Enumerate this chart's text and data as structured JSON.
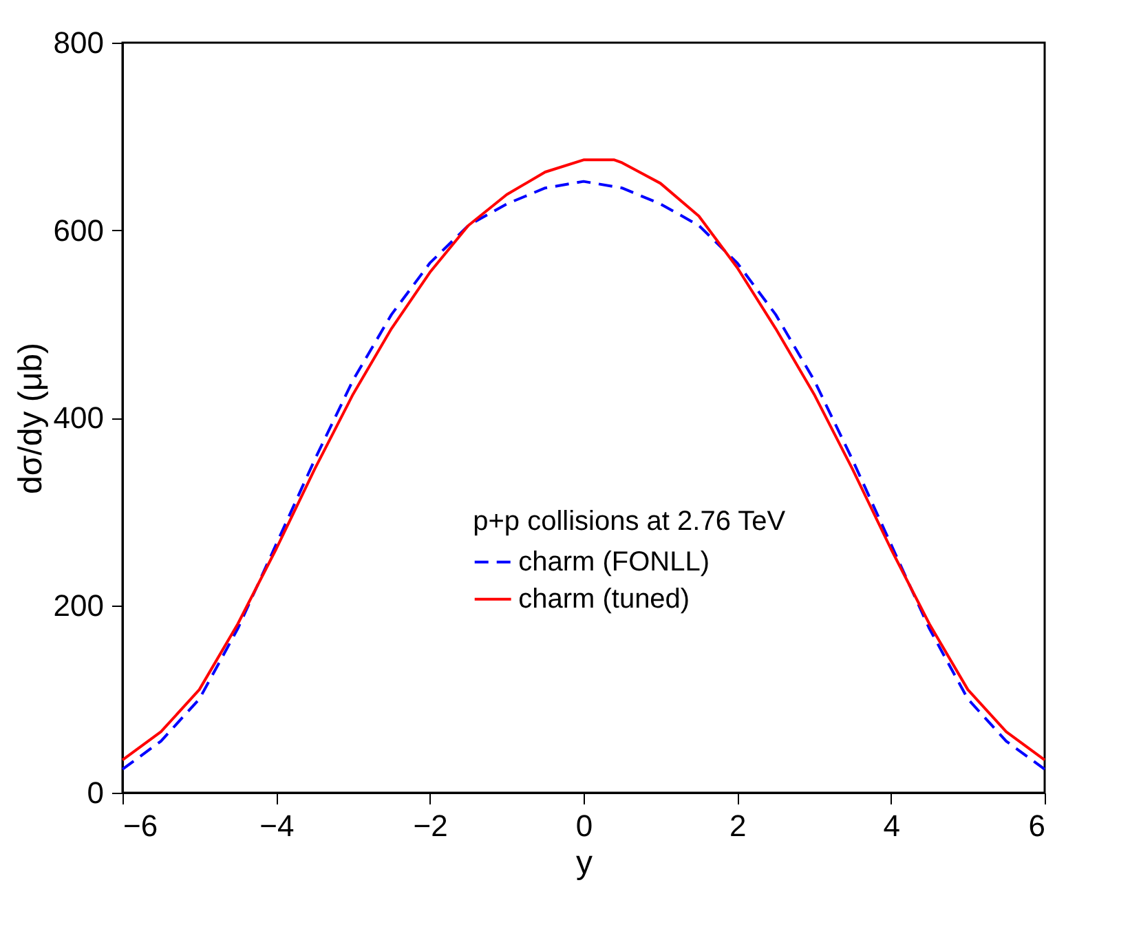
{
  "chart_data": {
    "type": "line",
    "xlabel": "y",
    "ylabel": "dσ/dy (μb)",
    "legend_title": "p+p collisions at 2.76 TeV",
    "legend": "bottom",
    "grid": false,
    "xlim": [
      -6,
      6
    ],
    "xticks": [
      -6,
      -4,
      -2,
      0,
      2,
      4,
      6
    ],
    "ylim": [
      0,
      800
    ],
    "yticks": [
      0,
      200,
      400,
      600,
      800
    ],
    "series": [
      {
        "name": "charm (FONLL)",
        "color": "#0000ff",
        "line_style": "dashed",
        "x": [
          -6,
          -5.5,
          -5,
          -4.5,
          -4,
          -3.5,
          -3,
          -2.5,
          -2,
          -1.5,
          -1,
          -0.5,
          0,
          0.5,
          1,
          1.5,
          2,
          2.5,
          3,
          3.5,
          4,
          4.5,
          5,
          5.5,
          6
        ],
        "values": [
          25,
          55,
          100,
          175,
          265,
          355,
          440,
          510,
          565,
          605,
          628,
          645,
          652,
          645,
          628,
          605,
          565,
          510,
          440,
          355,
          265,
          175,
          100,
          55,
          25
        ]
      },
      {
        "name": "charm (tuned)",
        "color": "#ff0000",
        "line_style": "solid",
        "x": [
          -6,
          -5.5,
          -5,
          -4.5,
          -4,
          -3.5,
          -3,
          -2.5,
          -2,
          -1.5,
          -1,
          -0.5,
          0,
          0.4,
          0.5,
          1,
          1.5,
          2,
          2.5,
          3,
          3.5,
          4,
          4.5,
          5,
          5.5,
          6
        ],
        "values": [
          35,
          65,
          110,
          180,
          260,
          345,
          425,
          495,
          555,
          605,
          638,
          662,
          675,
          675,
          672,
          650,
          615,
          560,
          495,
          425,
          345,
          260,
          180,
          110,
          65,
          35
        ]
      }
    ]
  }
}
